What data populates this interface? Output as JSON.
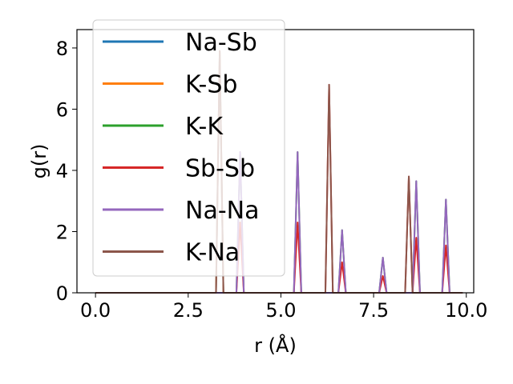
{
  "chart_data": {
    "type": "line",
    "title": "",
    "xlabel": "r (Å)",
    "ylabel": "g(r)",
    "xlim": [
      -0.5,
      10.2
    ],
    "ylim": [
      0,
      8.6
    ],
    "xticks": [
      0.0,
      2.5,
      5.0,
      7.5,
      10.0
    ],
    "xtick_labels": [
      "0.0",
      "2.5",
      "5.0",
      "7.5",
      "10.0"
    ],
    "yticks": [
      0,
      2,
      4,
      6,
      8
    ],
    "ytick_labels": [
      "0",
      "2",
      "4",
      "6",
      "8"
    ],
    "grid": false,
    "legend_position": "top-left",
    "series": [
      {
        "name": "Na-Sb",
        "color": "#1f77b4",
        "points": [
          [
            0.0,
            0
          ],
          [
            3.25,
            0
          ],
          [
            3.35,
            7.9
          ],
          [
            3.45,
            0
          ],
          [
            9.9,
            0
          ]
        ]
      },
      {
        "name": "K-Sb",
        "color": "#ff7f0e",
        "points": [
          [
            0.0,
            0
          ],
          [
            3.25,
            0
          ],
          [
            3.35,
            7.9
          ],
          [
            3.45,
            0
          ],
          [
            9.9,
            0
          ]
        ]
      },
      {
        "name": "K-K",
        "color": "#2ca02c",
        "points": [
          [
            0.0,
            0
          ],
          [
            3.8,
            0
          ],
          [
            3.9,
            4.6
          ],
          [
            4.0,
            0
          ],
          [
            5.35,
            0
          ],
          [
            5.45,
            4.6
          ],
          [
            5.55,
            0
          ],
          [
            6.55,
            0
          ],
          [
            6.65,
            2.05
          ],
          [
            6.75,
            0
          ],
          [
            7.65,
            0
          ],
          [
            7.75,
            1.15
          ],
          [
            7.85,
            0
          ],
          [
            8.55,
            0
          ],
          [
            8.65,
            3.65
          ],
          [
            8.75,
            0
          ],
          [
            9.35,
            0
          ],
          [
            9.45,
            3.05
          ],
          [
            9.55,
            0
          ],
          [
            9.9,
            0
          ]
        ]
      },
      {
        "name": "Sb-Sb",
        "color": "#d62728",
        "points": [
          [
            0.0,
            0
          ],
          [
            3.8,
            0
          ],
          [
            3.9,
            2.3
          ],
          [
            4.0,
            0
          ],
          [
            5.35,
            0
          ],
          [
            5.45,
            2.3
          ],
          [
            5.55,
            0
          ],
          [
            6.2,
            0
          ],
          [
            6.3,
            6.8
          ],
          [
            6.4,
            0
          ],
          [
            6.55,
            0
          ],
          [
            6.65,
            1.0
          ],
          [
            6.75,
            0
          ],
          [
            7.65,
            0
          ],
          [
            7.75,
            0.55
          ],
          [
            7.85,
            0
          ],
          [
            8.35,
            0
          ],
          [
            8.45,
            3.8
          ],
          [
            8.55,
            0
          ],
          [
            8.65,
            1.8
          ],
          [
            8.75,
            0
          ],
          [
            9.35,
            0
          ],
          [
            9.45,
            1.55
          ],
          [
            9.55,
            0
          ],
          [
            9.9,
            0
          ]
        ]
      },
      {
        "name": "Na-Na",
        "color": "#9467bd",
        "points": [
          [
            0.0,
            0
          ],
          [
            3.8,
            0
          ],
          [
            3.9,
            4.6
          ],
          [
            4.0,
            0
          ],
          [
            5.35,
            0
          ],
          [
            5.45,
            4.6
          ],
          [
            5.55,
            0
          ],
          [
            6.55,
            0
          ],
          [
            6.65,
            2.05
          ],
          [
            6.75,
            0
          ],
          [
            7.65,
            0
          ],
          [
            7.75,
            1.15
          ],
          [
            7.85,
            0
          ],
          [
            8.55,
            0
          ],
          [
            8.65,
            3.65
          ],
          [
            8.75,
            0
          ],
          [
            9.35,
            0
          ],
          [
            9.45,
            3.05
          ],
          [
            9.55,
            0
          ],
          [
            9.9,
            0
          ]
        ]
      },
      {
        "name": "K-Na",
        "color": "#8c564b",
        "points": [
          [
            0.0,
            0
          ],
          [
            3.25,
            0
          ],
          [
            3.35,
            7.9
          ],
          [
            3.45,
            0
          ],
          [
            6.2,
            0
          ],
          [
            6.3,
            6.8
          ],
          [
            6.4,
            0
          ],
          [
            8.35,
            0
          ],
          [
            8.45,
            3.8
          ],
          [
            8.55,
            0
          ],
          [
            9.9,
            0
          ]
        ]
      }
    ]
  }
}
